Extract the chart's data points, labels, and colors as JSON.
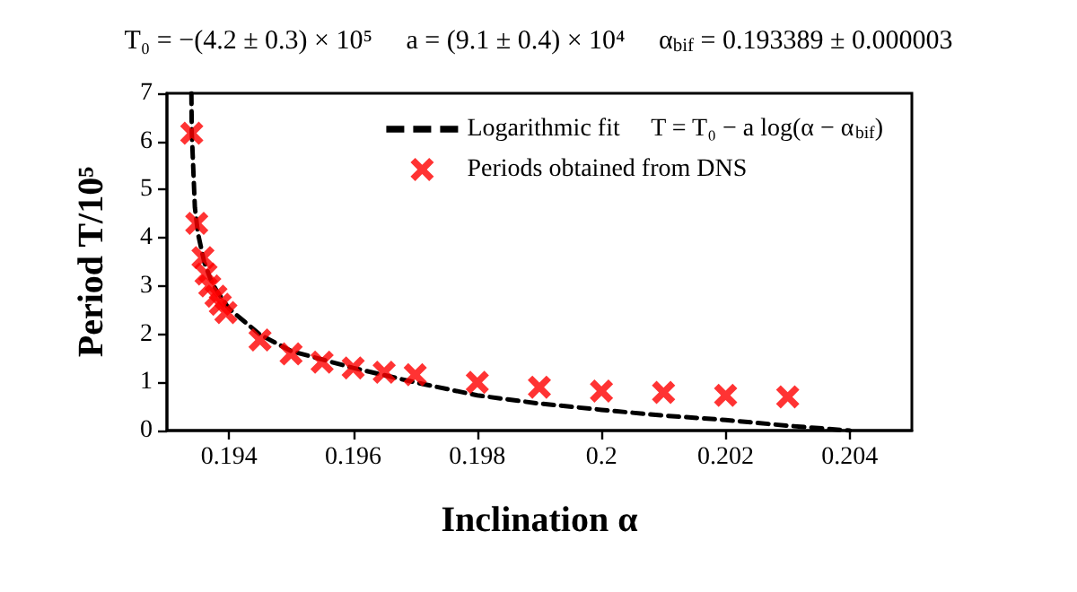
{
  "chart_data": {
    "type": "scatter",
    "title": "T₀ = −(4.2 ± 0.3) × 10⁵     a = (9.1 ± 0.4) × 10⁴     α$_{bif}$ = 0.193389 ± 0.000003",
    "xlabel": "Inclination α",
    "ylabel": "Period T/10⁵",
    "xlim": [
      0.193,
      0.205
    ],
    "xticks": [
      0.194,
      0.196,
      0.198,
      0.2,
      0.202,
      0.204
    ],
    "ylim": [
      0,
      7
    ],
    "yticks": [
      0,
      1,
      2,
      3,
      4,
      5,
      6,
      7
    ],
    "grid": false,
    "legend": "top right",
    "series": [
      {
        "type": "line",
        "name": "Logarithmic fit     T = T₀ − a log(α − α$_{bif}$)",
        "color": "#000000",
        "line_style": "dashed",
        "marker": "none",
        "x": [
          0.193394,
          0.1934,
          0.19345,
          0.1935,
          0.1936,
          0.1937,
          0.1938,
          0.194,
          0.1945,
          0.195,
          0.196,
          0.197,
          0.198,
          0.199,
          0.2,
          0.201,
          0.202,
          0.203,
          0.204
        ],
        "values": [
          7.0,
          6.19,
          4.63,
          4.09,
          3.5,
          3.15,
          2.9,
          2.53,
          1.99,
          1.65,
          1.3,
          1.0,
          0.73,
          0.56,
          0.43,
          0.31,
          0.22,
          0.1,
          0.0
        ]
      },
      {
        "name": "Periods obtained from DNS",
        "color": "#ff0000",
        "marker": "cross",
        "x": [
          0.1934,
          0.19348,
          0.19358,
          0.19363,
          0.19369,
          0.19379,
          0.19386,
          0.19395,
          0.1945,
          0.195,
          0.1955,
          0.196,
          0.1965,
          0.197,
          0.198,
          0.199,
          0.2,
          0.201,
          0.202,
          0.203
        ],
        "values": [
          6.17,
          4.3,
          3.59,
          3.25,
          3.0,
          2.79,
          2.62,
          2.45,
          1.88,
          1.59,
          1.42,
          1.3,
          1.21,
          1.16,
          1.0,
          0.9,
          0.82,
          0.79,
          0.73,
          0.7
        ]
      }
    ]
  }
}
